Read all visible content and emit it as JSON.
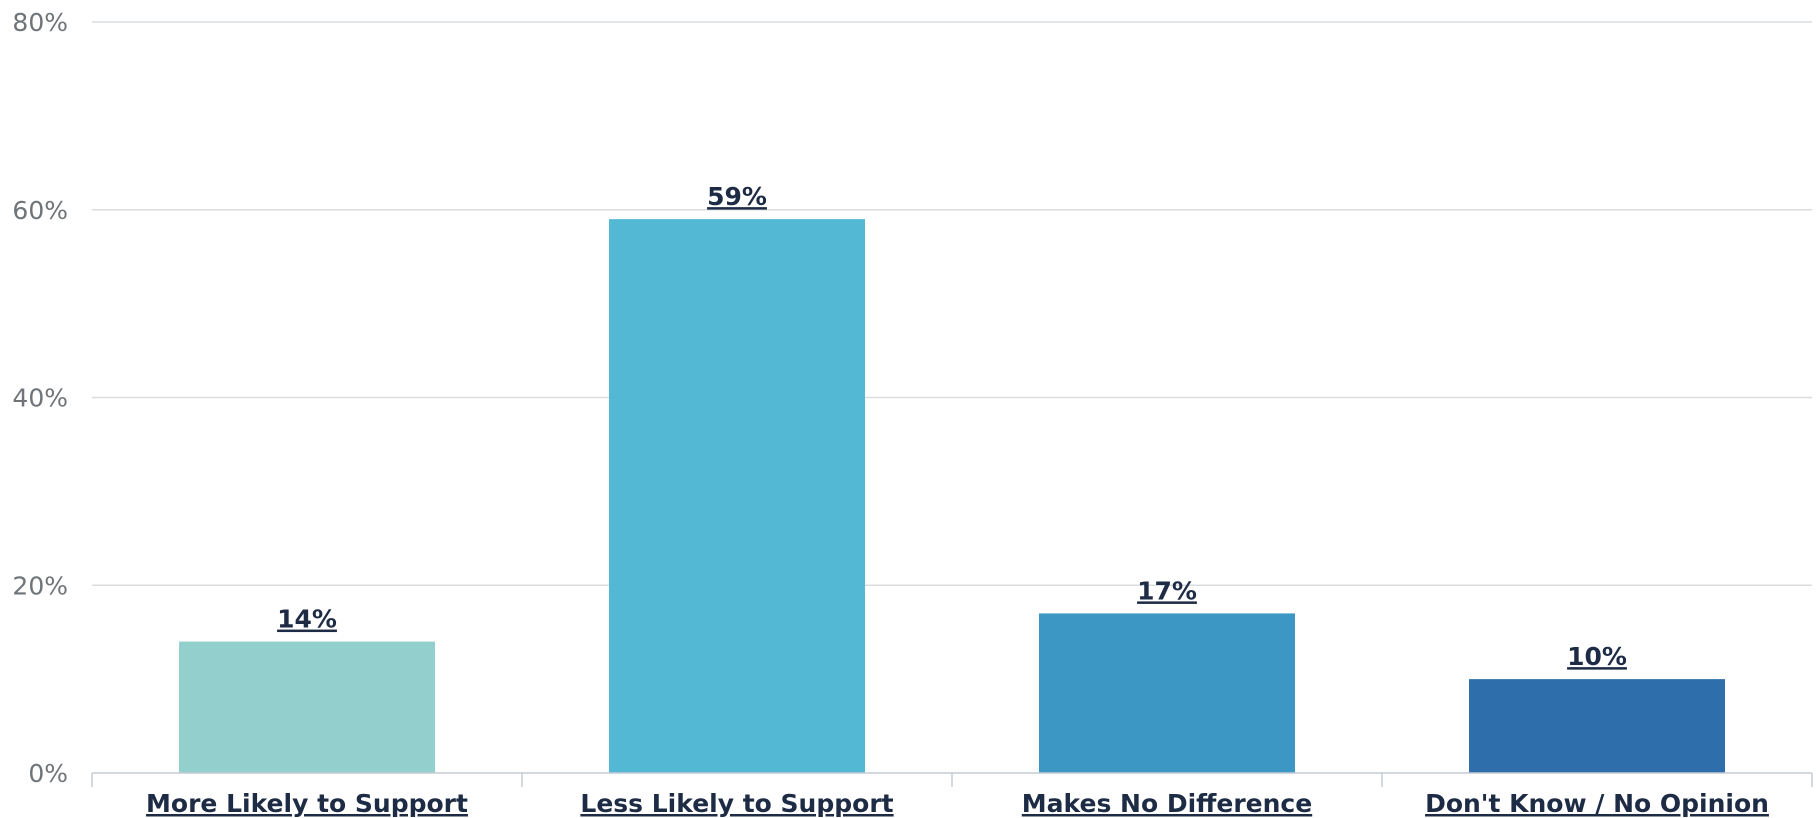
{
  "chart_data": {
    "type": "bar",
    "title": "",
    "xlabel": "",
    "ylabel": "",
    "categories": [
      "More Likely to Support",
      "Less Likely to Support",
      "Makes No Difference",
      "Don't Know / No Opinion"
    ],
    "values": [
      14,
      59,
      17,
      10
    ],
    "data_labels": [
      "14%",
      "59%",
      "17%",
      "10%"
    ],
    "y_ticks": [
      "0%",
      "20%",
      "40%",
      "60%",
      "80%"
    ],
    "ylim": [
      0,
      80
    ],
    "grid": true,
    "legend": "none",
    "colors": [
      "#93cfcd",
      "#52b8d4",
      "#3c97c5",
      "#2e6eab"
    ]
  }
}
